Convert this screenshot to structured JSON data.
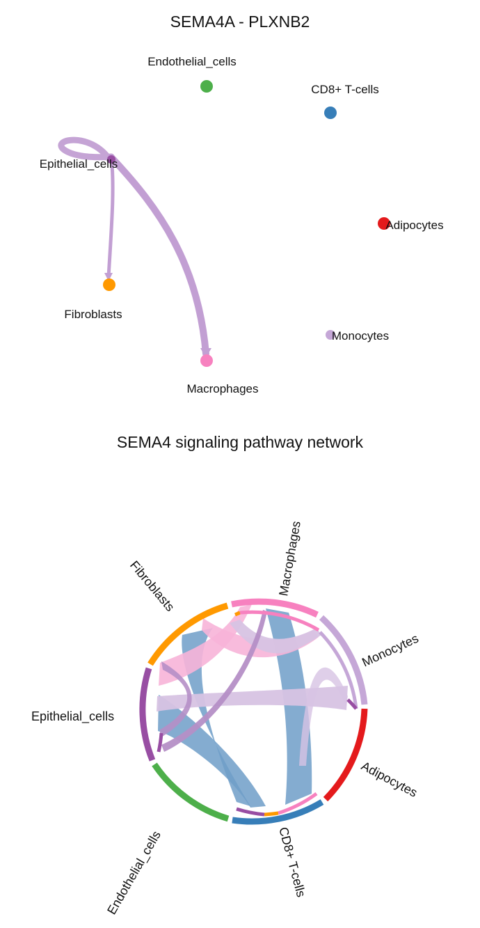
{
  "network": {
    "title": "SEMA4A - PLXNB2",
    "nodes": [
      {
        "id": "endothelial",
        "label": "Endothelial_cells",
        "color": "#4daf4a"
      },
      {
        "id": "cd8",
        "label": "CD8+ T-cells",
        "color": "#377eb8"
      },
      {
        "id": "epithelial",
        "label": "Epithelial_cells",
        "color": "#984ea3"
      },
      {
        "id": "adipocytes",
        "label": "Adipocytes",
        "color": "#e41a1c"
      },
      {
        "id": "fibroblasts",
        "label": "Fibroblasts",
        "color": "#ff9900"
      },
      {
        "id": "monocytes",
        "label": "Monocytes",
        "color": "#c5a7d7"
      },
      {
        "id": "macrophages",
        "label": "Macrophages",
        "color": "#f781bf"
      }
    ],
    "edges": [
      {
        "from": "Epithelial_cells",
        "to": "Epithelial_cells",
        "color": "#c29fd3"
      },
      {
        "from": "Epithelial_cells",
        "to": "Fibroblasts",
        "color": "#c29fd3"
      },
      {
        "from": "Epithelial_cells",
        "to": "Macrophages",
        "color": "#c29fd3"
      }
    ]
  },
  "chord": {
    "title": "SEMA4 signaling pathway network",
    "sectors": [
      {
        "id": "macrophages",
        "label": "Macrophages",
        "color": "#f781bf"
      },
      {
        "id": "monocytes",
        "label": "Monocytes",
        "color": "#c5a7d7"
      },
      {
        "id": "adipocytes",
        "label": "Adipocytes",
        "color": "#e41a1c"
      },
      {
        "id": "cd8",
        "label": "CD8+ T-cells",
        "color": "#377eb8"
      },
      {
        "id": "endothelial",
        "label": "Endothelial_cells",
        "color": "#4daf4a"
      },
      {
        "id": "epithelial",
        "label": "Epithelial_cells",
        "color": "#984ea3"
      },
      {
        "id": "fibroblasts",
        "label": "Fibroblasts",
        "color": "#ff9900"
      }
    ],
    "links_color": {
      "cd8": "#6f9dc8",
      "macrophages": "#f7b4d8",
      "monocytes": "#d7c3e3",
      "epithelial": "#b58fc6"
    }
  }
}
